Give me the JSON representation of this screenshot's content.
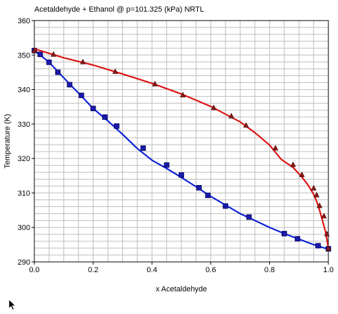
{
  "chart_data": {
    "type": "line",
    "title": "Acetaldehyde + Ethanol @ p=101.325 (kPa) NRTL",
    "xlabel": "x Acetaldehyde",
    "ylabel": "Temperature (K)",
    "xlim": [
      0,
      1
    ],
    "ylim": [
      290,
      360
    ],
    "grid": true,
    "x_ticks": [
      "0.0",
      "0.2",
      "0.4",
      "0.6",
      "0.8",
      "1.0"
    ],
    "y_ticks": [
      "290",
      "300",
      "310",
      "320",
      "330",
      "340",
      "350",
      "360"
    ],
    "series": [
      {
        "color": "#0b1fd6",
        "marker": "square",
        "line": {
          "x": [
            0.0,
            0.02,
            0.05,
            0.08,
            0.12,
            0.16,
            0.2,
            0.25,
            0.3,
            0.35,
            0.4,
            0.45,
            0.5,
            0.55,
            0.6,
            0.65,
            0.7,
            0.75,
            0.8,
            0.85,
            0.9,
            0.95,
            0.98,
            1.0
          ],
          "y": [
            351.3,
            350.0,
            347.9,
            345.2,
            341.6,
            338.1,
            334.5,
            330.9,
            327.0,
            322.9,
            319.5,
            317.1,
            314.5,
            311.8,
            309.0,
            306.5,
            304.0,
            302.0,
            300.0,
            298.2,
            296.6,
            295.0,
            294.2,
            293.7
          ]
        },
        "points": {
          "x": [
            0.0,
            0.02,
            0.05,
            0.08,
            0.12,
            0.16,
            0.2,
            0.24,
            0.28,
            0.37,
            0.45,
            0.5,
            0.56,
            0.59,
            0.65,
            0.73,
            0.85,
            0.895,
            0.965,
            1.0
          ],
          "y": [
            351.3,
            350.2,
            347.9,
            345.0,
            341.4,
            338.3,
            334.5,
            332.0,
            329.4,
            323.0,
            318.1,
            315.2,
            311.5,
            309.3,
            306.2,
            303.0,
            298.2,
            296.7,
            294.7,
            293.8
          ]
        }
      },
      {
        "color": "#dd1111",
        "marker": "triangle",
        "line": {
          "x": [
            0.0,
            0.1,
            0.2,
            0.3,
            0.4,
            0.5,
            0.6,
            0.7,
            0.75,
            0.8,
            0.84,
            0.88,
            0.91,
            0.93,
            0.95,
            0.96,
            0.97,
            0.98,
            0.99,
            0.995,
            1.0
          ],
          "y": [
            351.8,
            349.2,
            347.1,
            344.5,
            341.8,
            338.7,
            335.1,
            330.6,
            327.5,
            323.9,
            319.7,
            317.4,
            314.6,
            312.4,
            309.6,
            307.6,
            305.0,
            302.0,
            298.8,
            296.5,
            293.8
          ]
        },
        "points": {
          "x": [
            0.0,
            0.065,
            0.165,
            0.275,
            0.41,
            0.505,
            0.61,
            0.67,
            0.72,
            0.82,
            0.88,
            0.91,
            0.95,
            0.96,
            0.97,
            0.985,
            0.995,
            1.0
          ],
          "y": [
            351.3,
            350.2,
            348.0,
            345.2,
            341.6,
            338.4,
            334.7,
            332.3,
            329.6,
            323.0,
            318.2,
            315.3,
            311.4,
            309.4,
            306.3,
            303.3,
            298.1,
            293.9
          ]
        }
      }
    ]
  }
}
